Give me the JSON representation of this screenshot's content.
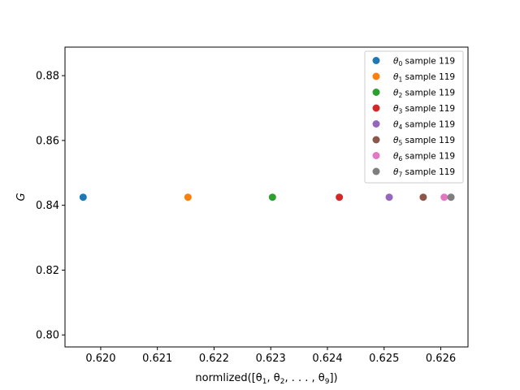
{
  "chart_data": {
    "type": "scatter",
    "title": "",
    "xlabel": "normlized([θ1, θ2, ..., θ9])",
    "ylabel": "G",
    "xlim": [
      0.61937,
      0.62648
    ],
    "ylim": [
      0.7963,
      0.8888
    ],
    "xticks": [
      0.62,
      0.621,
      0.622,
      0.623,
      0.624,
      0.625,
      0.626
    ],
    "xtick_labels": [
      "0.620",
      "0.621",
      "0.622",
      "0.623",
      "0.624",
      "0.625",
      "0.626"
    ],
    "yticks": [
      0.8,
      0.82,
      0.84,
      0.86,
      0.88
    ],
    "ytick_labels": [
      "0.80",
      "0.82",
      "0.84",
      "0.86",
      "0.88"
    ],
    "grid": false,
    "legend_position": "top-right",
    "series": [
      {
        "name": "θ0 sample 119",
        "sub": "0",
        "rest": " sample 119",
        "color": "#1f77b4",
        "x": 0.61969,
        "y": 0.8425
      },
      {
        "name": "θ1 sample 119",
        "sub": "1",
        "rest": " sample 119",
        "color": "#ff7f0e",
        "x": 0.62154,
        "y": 0.8425
      },
      {
        "name": "θ2 sample 119",
        "sub": "2",
        "rest": " sample 119",
        "color": "#2ca02c",
        "x": 0.62303,
        "y": 0.8425
      },
      {
        "name": "θ3 sample 119",
        "sub": "3",
        "rest": " sample 119",
        "color": "#d62728",
        "x": 0.62421,
        "y": 0.8425
      },
      {
        "name": "θ4 sample 119",
        "sub": "4",
        "rest": " sample 119",
        "color": "#9467bd",
        "x": 0.62509,
        "y": 0.8425
      },
      {
        "name": "θ5 sample 119",
        "sub": "5",
        "rest": " sample 119",
        "color": "#8c564b",
        "x": 0.62569,
        "y": 0.8425
      },
      {
        "name": "θ6 sample 119",
        "sub": "6",
        "rest": " sample 119",
        "color": "#e377c2",
        "x": 0.62606,
        "y": 0.8425
      },
      {
        "name": "θ7 sample 119",
        "sub": "7",
        "rest": " sample 119",
        "color": "#7f7f7f",
        "x": 0.62618,
        "y": 0.8425
      }
    ]
  }
}
